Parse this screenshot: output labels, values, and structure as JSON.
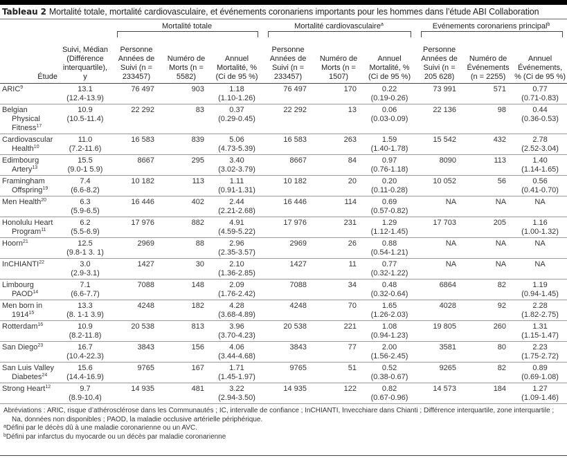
{
  "title": {
    "label": "Tableau 2",
    "text": "Mortalité totale, mortalité cardiovasculaire, et événements coronariens importants pour les hommes dans l’étude ABI Collaboration"
  },
  "groups": [
    {
      "label": "Mortalité totale",
      "sup": ""
    },
    {
      "label": "Mortalité cardiovasculaire",
      "sup": "a"
    },
    {
      "label": "Evénements coronariens principal",
      "sup": "b"
    }
  ],
  "columns": [
    "Étude",
    "Suivi, Médian (Différence interquartile), y",
    "Personne Années de Suivi (n = 233457)",
    "Numéro de Morts (n = 5582)",
    "Annuel Mortalité, % (Ci de 95 %)",
    "Personne Années de Suivi (n = 233457)",
    "Numéro de Morts (n = 1507)",
    "Annuel Mortalité, % (Ci de 95 %)",
    "Personne Années de Suivi (n = 205 628)",
    "Numéro de Événements (n = 2255)",
    "Annuel Événements, % (Ci de 95 %)"
  ],
  "rows": [
    {
      "name": "ARIC",
      "ref": "9",
      "v": [
        "13.1\n(12.4-13.9)",
        "76 497",
        "903",
        "1.18\n(1.10-1.26)",
        "76 497",
        "170",
        "0.22\n(0.19-0.26)",
        "73 991",
        "571",
        "0.77\n(0.71-0.83)"
      ]
    },
    {
      "name": "Belgian Physical Fitness",
      "ref": "17",
      "v": [
        "10.9\n(10.5-11.4)",
        "22 292",
        "83",
        "0.37\n(0.29-0.45)",
        "22 292",
        "13",
        "0.06\n(0.03-0.09)",
        "22 136",
        "98",
        "0.44\n(0.36-0.53)"
      ]
    },
    {
      "name": "Cardiovascular Health",
      "ref": "10",
      "v": [
        "11.0\n(7.2-11.6)",
        "16 583",
        "839",
        "5.06\n(4.73-5.39)",
        "16 583",
        "263",
        "1.59\n(1.40-1.78)",
        "15 542",
        "432",
        "2.78\n(2.52-3.04)"
      ]
    },
    {
      "name": "Edimbourg Artery",
      "ref": "13",
      "v": [
        "15.5\n(9.0-1 5.9)",
        "8667",
        "295",
        "3.40\n(3.02-3.79)",
        "8667",
        "84",
        "0.97\n(0.76-1.18)",
        "8090",
        "113",
        "1.40\n(1.14-1.65)"
      ]
    },
    {
      "name": "Framingham Offspring",
      "ref": "19",
      "v": [
        "7.4\n(6.6-8.2)",
        "10 182",
        "113",
        "1.11\n(0.91-1.31)",
        "10 182",
        "20",
        "0.20\n(0.11-0.28)",
        "10 052",
        "56",
        "0.56\n(0.41-0.70)"
      ]
    },
    {
      "name": "Men Health",
      "ref": "20",
      "v": [
        "6.3\n(5.9-6.5)",
        "16 446",
        "402",
        "2.44\n(2.21-2.68)",
        "16 446",
        "114",
        "0.69\n(0.57-0.82)",
        "NA",
        "NA",
        "NA"
      ]
    },
    {
      "name": "Honolulu Heart Program",
      "ref": "11",
      "v": [
        "6.2\n(5.5-6.9)",
        "17 976",
        "882",
        "4.91\n(4.59-5.22)",
        "17 976",
        "231",
        "1.29\n(1.12-1.45)",
        "17 703",
        "205",
        "1.16\n(1.00-1.32)"
      ]
    },
    {
      "name": "Hoorn",
      "ref": "21",
      "v": [
        "12.5\n(9.8-1 3. 1)",
        "2969",
        "88",
        "2.96\n(2.35-3.57)",
        "2969",
        "26",
        "0.88\n(0.54-1.21)",
        "NA",
        "NA",
        "NA"
      ]
    },
    {
      "name": "InCHIANTI",
      "ref": "22",
      "v": [
        "3.0\n(2.9-3.1)",
        "1427",
        "30",
        "2.10\n(1.36-2.85)",
        "1427",
        "11",
        "0.77\n(0.32-1.22)",
        "NA",
        "NA",
        "NA"
      ]
    },
    {
      "name": "Limbourg PAOD",
      "ref": "14",
      "v": [
        "7.1\n(6.6-7.7)",
        "7088",
        "148",
        "2.09\n(1.76-2.42)",
        "7088",
        "34",
        "0.48\n(0.32-0.64)",
        "6864",
        "82",
        "1.19\n(0.94-1.45)"
      ]
    },
    {
      "name": "Men born in 1914",
      "ref": "15",
      "v": [
        "13.3\n(8. 1-1 3.9)",
        "4248",
        "182",
        "4.28\n(3.68-4.89)",
        "4248",
        "70",
        "1.65\n(1.26-2.03)",
        "4028",
        "92",
        "2.28\n(1.82-2.75)"
      ]
    },
    {
      "name": "Rotterdam",
      "ref": "16",
      "v": [
        "10.9\n(8.2-11.8)",
        "20 538",
        "813",
        "3.96\n(3.70-4.23)",
        "20 538",
        "221",
        "1.08\n(0.94-1.23)",
        "19 805",
        "260",
        "1.31\n(1.15-1.47)"
      ]
    },
    {
      "name": "San Diego",
      "ref": "23",
      "v": [
        "16.7\n(10.4-22.3)",
        "3843",
        "156",
        "4.06\n(3.44-4.68)",
        "3843",
        "77",
        "2.00\n(1.56-2.45)",
        "3581",
        "80",
        "2.23\n(1.75-2.72)"
      ]
    },
    {
      "name": "San Luis Valley Diabetes",
      "ref": "24",
      "v": [
        "15.6\n(14.4-16.9)",
        "9765",
        "167",
        "1.71\n(1.45-1.97)",
        "9765",
        "51",
        "0.52\n(0.38-0.67)",
        "9265",
        "82",
        "0.89\n(0.69-1.08)"
      ]
    },
    {
      "name": "Strong Heart",
      "ref": "12",
      "v": [
        "9.7\n(8.9-10.4)",
        "14 935",
        "481",
        "3.22\n(2.94-3.50)",
        "14 935",
        "122",
        "0.82\n(0.67-0.96)",
        "14 573",
        "184",
        "1.27\n(1.09-1.46)"
      ]
    }
  ],
  "notes": {
    "abbreviations": "Abréviations : ARIC, risque d’athérosclérose dans les Communautés ; IC, intervalle de confiance ; InCHIANTI, Invecchiare dans Chianti ; Différence interquartile, zone interquartile ; Na, données non disponibles ; PAOD, la maladie occlusive artérielle périphérique.",
    "a": {
      "mark": "a",
      "text": "Défini par le décès dû à une maladie coronarienne ou un AVC."
    },
    "b": {
      "mark": "b",
      "text": "Défini par infarctus du myocarde ou un décès par maladie coronarienne"
    }
  }
}
